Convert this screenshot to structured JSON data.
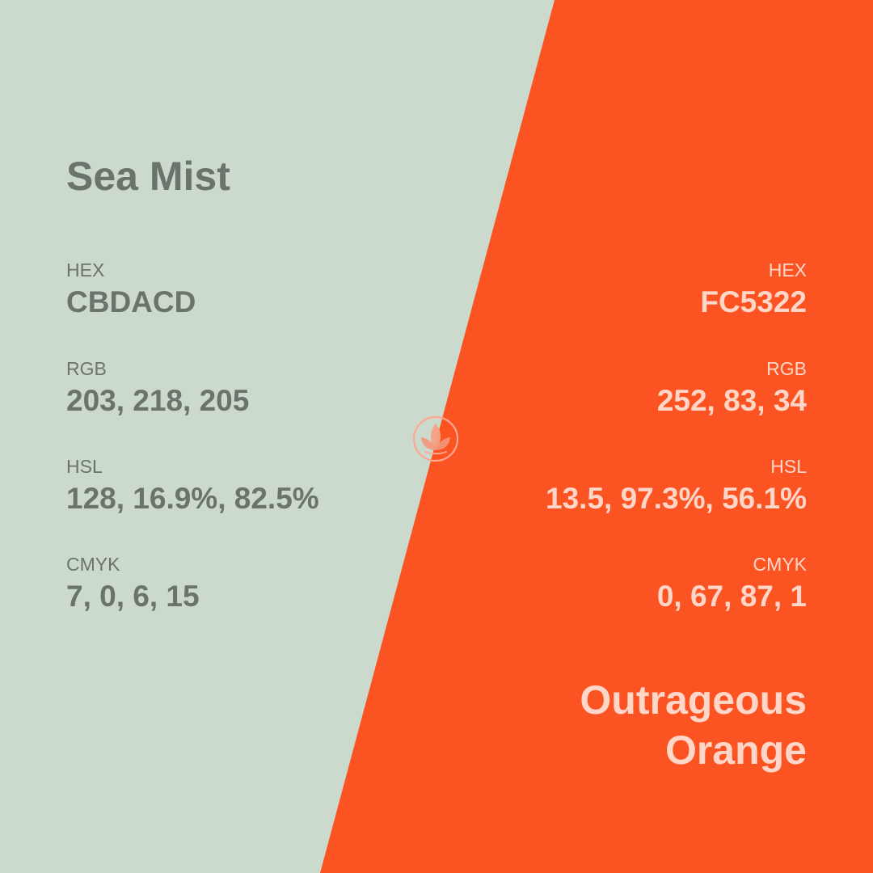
{
  "left": {
    "name": "Sea Mist",
    "hex_label": "HEX",
    "hex_value": "CBDACD",
    "rgb_label": "RGB",
    "rgb_value": "203, 218, 205",
    "hsl_label": "HSL",
    "hsl_value": "128, 16.9%, 82.5%",
    "cmyk_label": "CMYK",
    "cmyk_value": "7, 0, 6, 15",
    "background": "#CBDACD",
    "text_color": "#6A746B"
  },
  "right": {
    "name_line1": "Outrageous",
    "name_line2": "Orange",
    "hex_label": "HEX",
    "hex_value": "FC5322",
    "rgb_label": "RGB",
    "rgb_value": "252, 83, 34",
    "hsl_label": "HSL",
    "hsl_value": "13.5, 97.3%, 56.1%",
    "cmyk_label": "CMYK",
    "cmyk_value": "0, 67, 87, 1",
    "background": "#FC5322",
    "text_color": "#FFD6C7"
  },
  "logo": {
    "icon": "leaf-icon"
  }
}
